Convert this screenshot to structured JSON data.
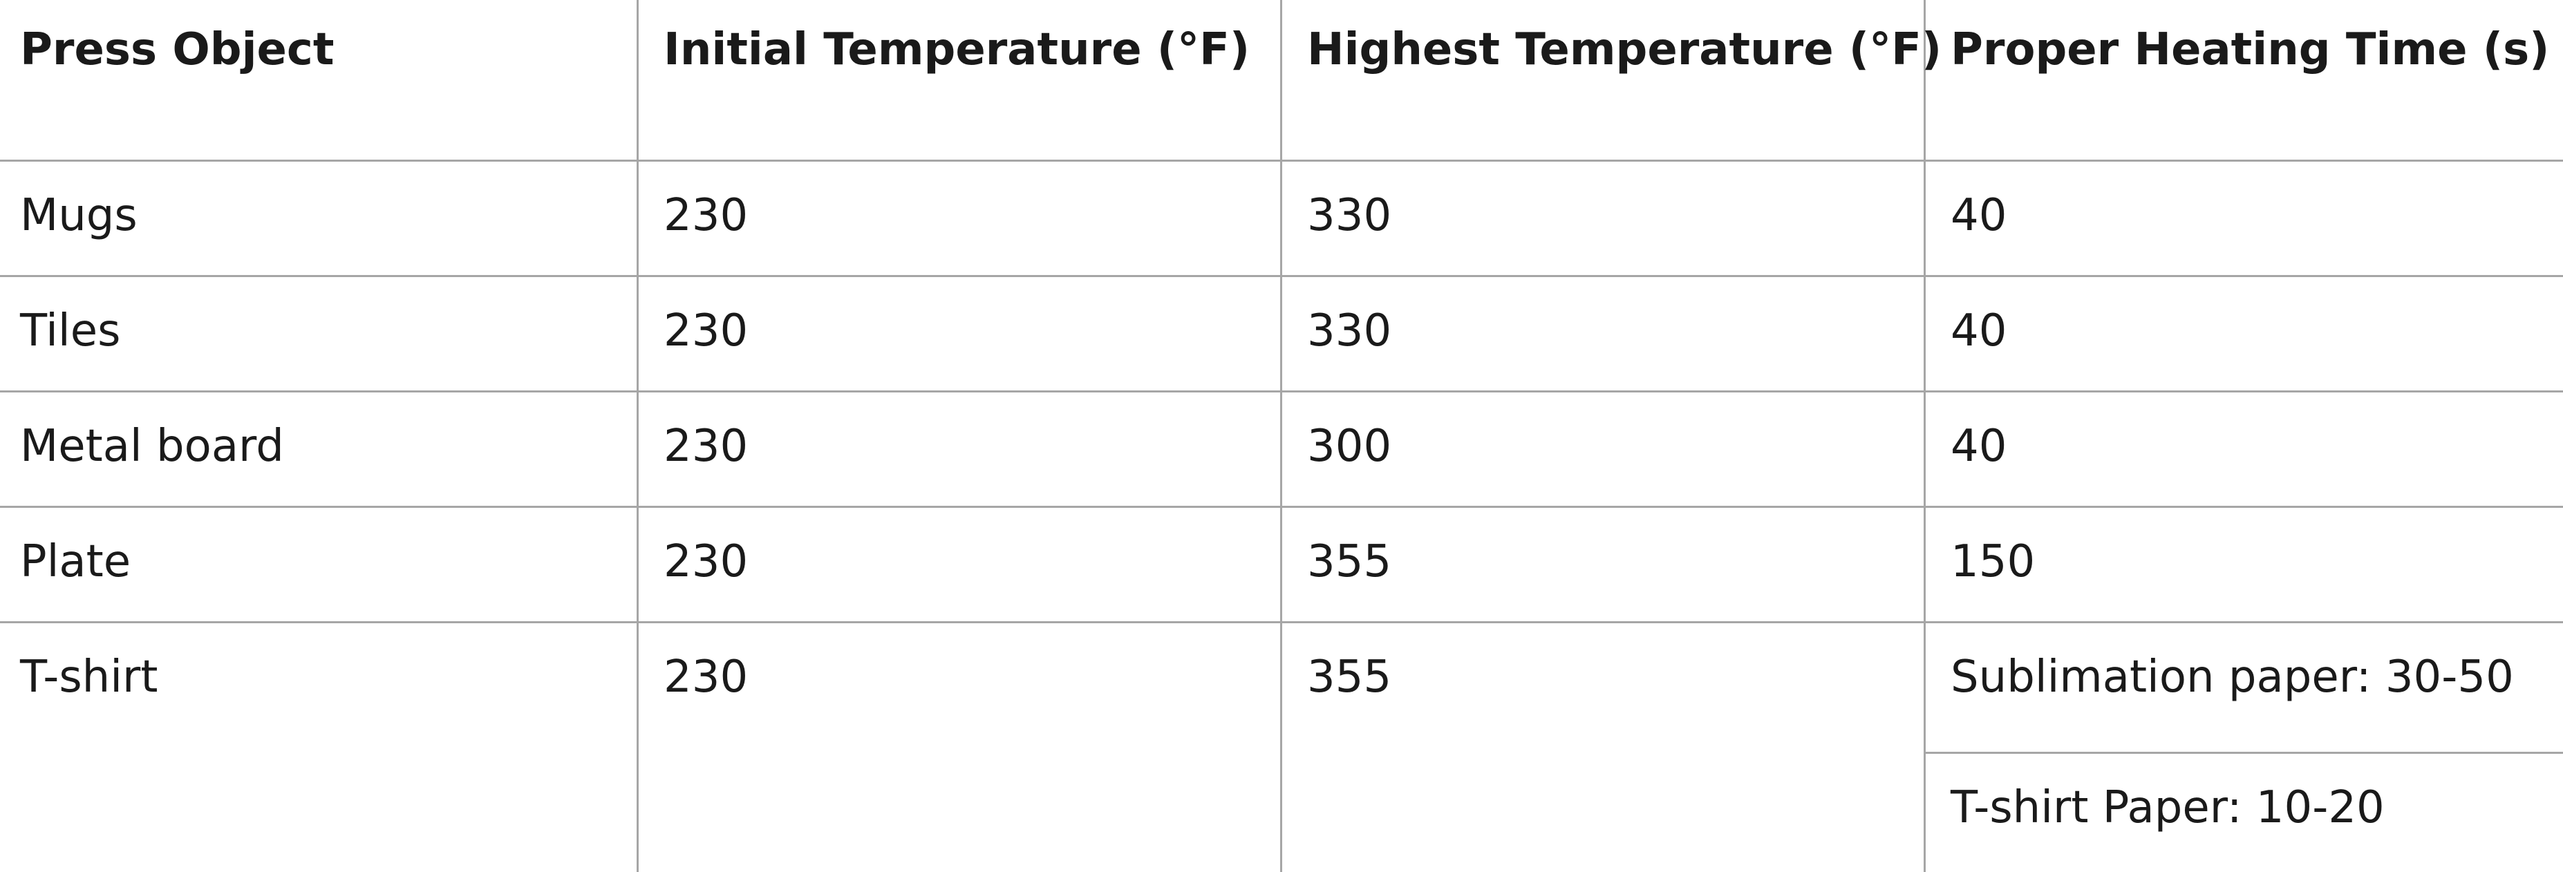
{
  "table": {
    "headers": [
      "Press Object",
      "Initial Temperature (°F)",
      "Highest Temperature (°F)",
      "Proper Heating Time (s)"
    ],
    "rows": [
      [
        "Mugs",
        "230",
        "330",
        "40"
      ],
      [
        "Tiles",
        "230",
        "330",
        "40"
      ],
      [
        "Metal board",
        "230",
        "300",
        "40"
      ],
      [
        "Plate",
        "230",
        "355",
        "150"
      ],
      [
        "T-shirt",
        "230",
        "355",
        "Sublimation paper: 30-50"
      ]
    ],
    "extra_line": "T-shirt Paper: 10-20"
  },
  "colors": {
    "border": "#a6a6a6",
    "text": "#1a1a1a",
    "background": "#ffffff"
  }
}
